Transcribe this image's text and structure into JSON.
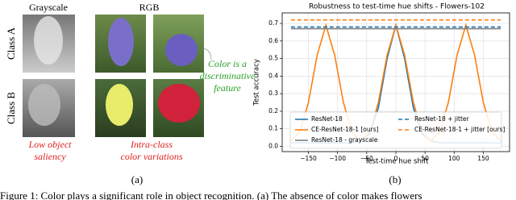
{
  "panel_a": {
    "column_labels": [
      "Grayscale",
      "RGB"
    ],
    "row_labels": [
      "Class A",
      "Class B"
    ],
    "note_color": [
      "Color is a",
      "discriminative",
      "feature"
    ],
    "note_saliency": [
      "Low object",
      "saliency"
    ],
    "note_variation": [
      "Intra-class",
      "color variations"
    ],
    "sublabel": "(a)"
  },
  "chart_data": {
    "type": "line",
    "title": "Robustness to test-time hue shifts - Flowers-102",
    "x_label": "Test-time hue shift",
    "y_label": "Test accuracy",
    "sublabel": "(b)",
    "x": [
      -180,
      -165,
      -150,
      -135,
      -120,
      -105,
      -90,
      -75,
      -60,
      -45,
      -30,
      -15,
      0,
      15,
      30,
      45,
      60,
      75,
      90,
      105,
      120,
      135,
      150,
      165,
      180
    ],
    "xlim": [
      -195,
      195
    ],
    "xticks": [
      {
        "value": -150,
        "label": "−150"
      },
      {
        "value": -100,
        "label": "−100"
      },
      {
        "value": -50,
        "label": "−50"
      },
      0,
      50,
      100,
      150
    ],
    "ylim": [
      -0.03,
      0.76
    ],
    "yticks": [
      {
        "value": 0,
        "label": "0.0"
      },
      0.1,
      0.2,
      0.3,
      0.4,
      0.5,
      0.6,
      0.7
    ],
    "grid": true,
    "legend": "lower center",
    "series": [
      {
        "name": "ResNet-18",
        "color": "#1f77b4",
        "style": "solid",
        "values": [
          0.02,
          0.02,
          0.02,
          0.02,
          0.02,
          0.02,
          0.02,
          0.02,
          0.03,
          0.07,
          0.22,
          0.5,
          0.69,
          0.5,
          0.22,
          0.07,
          0.03,
          0.02,
          0.02,
          0.02,
          0.02,
          0.02,
          0.02,
          0.02,
          0.02
        ]
      },
      {
        "name": "CE-ResNet-18-1 [ours]",
        "color": "#ff7f0e",
        "style": "solid",
        "values": [
          0.03,
          0.08,
          0.25,
          0.52,
          0.69,
          0.52,
          0.25,
          0.08,
          0.03,
          0.08,
          0.25,
          0.52,
          0.69,
          0.52,
          0.25,
          0.08,
          0.03,
          0.08,
          0.25,
          0.52,
          0.69,
          0.52,
          0.25,
          0.08,
          0.03
        ]
      },
      {
        "name": "ResNet-18 - grayscale",
        "color": "#7f7f7f",
        "style": "solid",
        "values": [
          0.67,
          0.67,
          0.67,
          0.67,
          0.67,
          0.67,
          0.67,
          0.67,
          0.67,
          0.67,
          0.67,
          0.67,
          0.67,
          0.67,
          0.67,
          0.67,
          0.67,
          0.67,
          0.67,
          0.67,
          0.67,
          0.67,
          0.67,
          0.67,
          0.67
        ]
      },
      {
        "name": "ResNet-18 + jitter",
        "color": "#1f77b4",
        "style": "dashed",
        "values": [
          0.68,
          0.68,
          0.68,
          0.68,
          0.68,
          0.68,
          0.68,
          0.68,
          0.68,
          0.68,
          0.68,
          0.68,
          0.68,
          0.68,
          0.68,
          0.68,
          0.68,
          0.68,
          0.68,
          0.68,
          0.68,
          0.68,
          0.68,
          0.68,
          0.68
        ]
      },
      {
        "name": "CE-ResNet-18-1 + jitter [ours]",
        "color": "#ff7f0e",
        "style": "dashed",
        "values": [
          0.72,
          0.72,
          0.72,
          0.72,
          0.72,
          0.72,
          0.72,
          0.72,
          0.72,
          0.72,
          0.72,
          0.72,
          0.72,
          0.72,
          0.72,
          0.72,
          0.72,
          0.72,
          0.72,
          0.72,
          0.72,
          0.72,
          0.72,
          0.72,
          0.72
        ]
      }
    ]
  },
  "caption": "Figure 1: Color plays a significant role in object recognition. (a) The absence of color makes flowers"
}
